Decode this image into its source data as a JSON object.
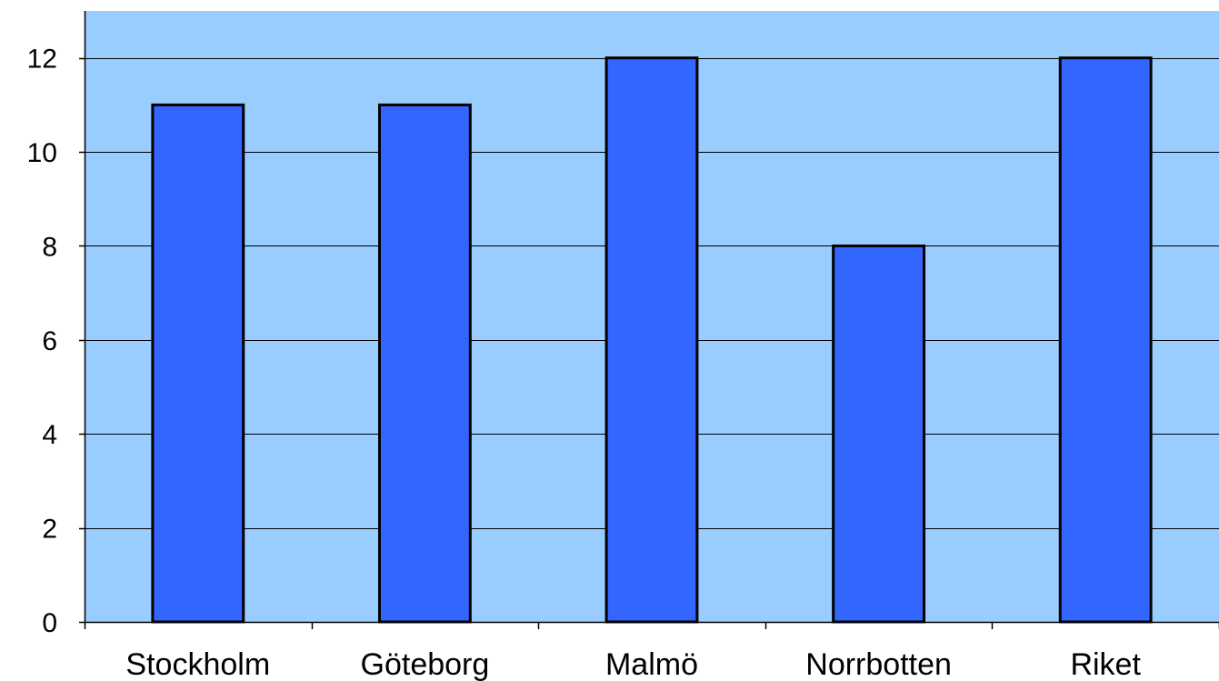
{
  "chart_data": {
    "type": "bar",
    "categories": [
      "Stockholm",
      "Göteborg",
      "Malmö",
      "Norrbotten",
      "Riket"
    ],
    "values": [
      11,
      11,
      12,
      8,
      12
    ],
    "title": "",
    "xlabel": "",
    "ylabel": "",
    "ylim": [
      0,
      13
    ],
    "yticks": [
      0,
      2,
      4,
      6,
      8,
      10,
      12
    ],
    "grid": true,
    "colors": {
      "plot_background": "#99CCFF",
      "bar_fill": "#3366FF",
      "bar_stroke": "#000000",
      "gridline": "#000000"
    }
  }
}
